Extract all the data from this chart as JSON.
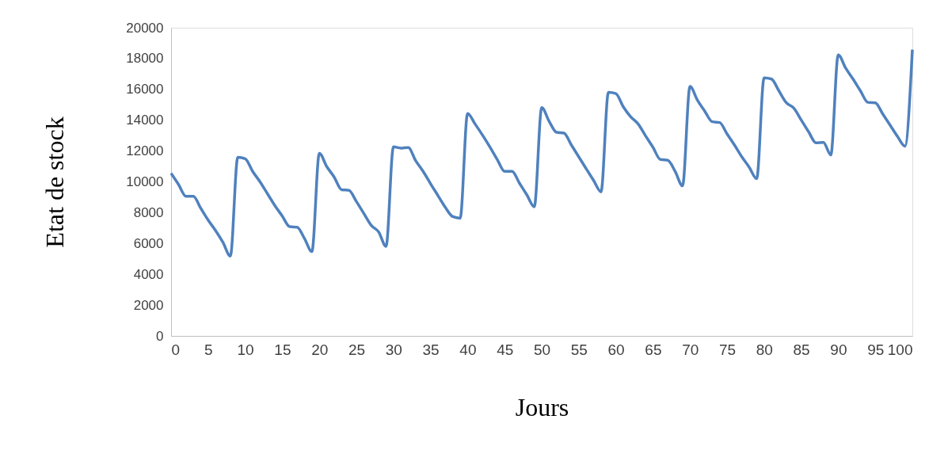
{
  "chart_data": {
    "type": "line",
    "xlabel": "Jours",
    "ylabel": "Etat de stock",
    "x": [
      0,
      1,
      2,
      3,
      4,
      5,
      6,
      7,
      8,
      9,
      10,
      11,
      12,
      13,
      14,
      15,
      16,
      17,
      18,
      19,
      20,
      21,
      22,
      23,
      24,
      25,
      26,
      27,
      28,
      29,
      30,
      31,
      32,
      33,
      34,
      35,
      36,
      37,
      38,
      39,
      40,
      41,
      42,
      43,
      44,
      45,
      46,
      47,
      48,
      49,
      50,
      51,
      52,
      53,
      54,
      55,
      56,
      57,
      58,
      59,
      60,
      61,
      62,
      63,
      64,
      65,
      66,
      67,
      68,
      69,
      70,
      71,
      72,
      73,
      74,
      75,
      76,
      77,
      78,
      79,
      80,
      81,
      82,
      83,
      84,
      85,
      86,
      87,
      88,
      89,
      90,
      91,
      92,
      93,
      94,
      95,
      96,
      97,
      98,
      99,
      100
    ],
    "series": [
      {
        "color": "#4f81bd",
        "values": [
          10550,
          9830,
          9060,
          9060,
          8290,
          7520,
          6840,
          6070,
          5180,
          11590,
          11500,
          10680,
          10000,
          9230,
          8460,
          7780,
          7090,
          7060,
          6320,
          5470,
          11850,
          10990,
          10310,
          9490,
          9450,
          8720,
          7950,
          7180,
          6750,
          5810,
          12270,
          12190,
          12220,
          11370,
          10680,
          9880,
          9110,
          8340,
          7740,
          7640,
          14440,
          13760,
          13040,
          12270,
          11450,
          10680,
          10680,
          9910,
          9150,
          8380,
          14820,
          13930,
          13210,
          13160,
          12390,
          11620,
          10850,
          10090,
          9350,
          15810,
          15730,
          14870,
          14220,
          13760,
          12990,
          12250,
          11450,
          11400,
          10680,
          9740,
          16190,
          15300,
          14580,
          13900,
          13850,
          13110,
          12390,
          11620,
          10940,
          10200,
          16750,
          16670,
          15900,
          15130,
          14790,
          14020,
          13250,
          12530,
          12560,
          11740,
          18240,
          17380,
          16670,
          15900,
          15160,
          15130,
          14410,
          13680,
          12940,
          12310,
          18580
        ]
      }
    ],
    "xlim": [
      0,
      100
    ],
    "xticks": [
      0,
      5,
      10,
      15,
      20,
      25,
      30,
      35,
      40,
      45,
      50,
      55,
      60,
      65,
      70,
      75,
      80,
      85,
      90,
      95,
      100
    ],
    "ylim": [
      0,
      20000
    ],
    "yticks": [
      0,
      2000,
      4000,
      6000,
      8000,
      10000,
      12000,
      14000,
      16000,
      18000,
      20000
    ],
    "grid": false,
    "marker": "none",
    "line_style": "solid"
  }
}
